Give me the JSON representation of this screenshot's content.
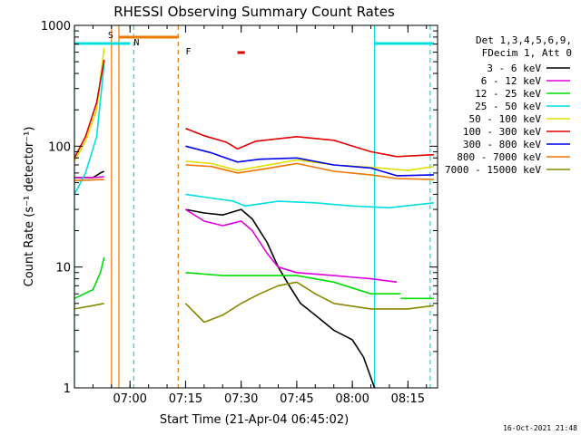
{
  "chart_data": {
    "type": "line",
    "title": "RHESSI Observing Summary Count Rates",
    "xlabel": "Start Time (21-Apr-04 06:45:02)",
    "ylabel": "Count Rate (s⁻¹ detector⁻¹)",
    "yscale": "log",
    "ylim": [
      1,
      1000
    ],
    "xlim": [
      "06:45:02",
      "08:23:00"
    ],
    "x_ticks": [
      "07:00",
      "07:15",
      "07:30",
      "07:45",
      "08:00",
      "08:15"
    ],
    "y_ticks": [
      "1",
      "10",
      "100",
      "1000"
    ],
    "grid": false,
    "legend_position": "right",
    "legend_header": [
      "Det 1,3,4,5,6,9,",
      "FDecim 1, Att 0"
    ],
    "timestamp": "16-Oct-2021 21:48",
    "series": [
      {
        "name": "3 - 6 keV",
        "color": "#000000",
        "segments": [
          [
            [
              "06:45",
              55
            ],
            [
              "06:50",
              55
            ],
            [
              "06:52",
              60
            ],
            [
              "06:53",
              62
            ]
          ],
          [
            [
              "07:15",
              30
            ],
            [
              "07:20",
              28
            ],
            [
              "07:25",
              27
            ],
            [
              "07:30",
              30
            ],
            [
              "07:33",
              25
            ],
            [
              "07:37",
              16
            ],
            [
              "07:40",
              10
            ],
            [
              "07:43",
              7
            ],
            [
              "07:46",
              5
            ],
            [
              "07:50",
              4
            ],
            [
              "07:55",
              3
            ],
            [
              "08:00",
              2.5
            ],
            [
              "08:03",
              1.8
            ],
            [
              "08:06",
              1
            ]
          ]
        ]
      },
      {
        "name": "6 - 12 keV",
        "color": "#e000e0",
        "segments": [
          [
            [
              "06:45",
              55
            ],
            [
              "06:50",
              55
            ],
            [
              "06:53",
              56
            ]
          ],
          [
            [
              "07:15",
              30
            ],
            [
              "07:20",
              24
            ],
            [
              "07:25",
              22
            ],
            [
              "07:30",
              24
            ],
            [
              "07:33",
              20
            ],
            [
              "07:37",
              13
            ],
            [
              "07:40",
              10
            ],
            [
              "07:45",
              9
            ],
            [
              "07:55",
              8.5
            ],
            [
              "08:05",
              8
            ],
            [
              "08:12",
              7.5
            ]
          ]
        ]
      },
      {
        "name": "12 - 25 keV",
        "color": "#00dd00",
        "segments": [
          [
            [
              "06:45",
              5.5
            ],
            [
              "06:50",
              6.5
            ],
            [
              "06:52",
              9
            ],
            [
              "06:53",
              12
            ]
          ],
          [
            [
              "07:15",
              9
            ],
            [
              "07:25",
              8.5
            ],
            [
              "07:35",
              8.5
            ],
            [
              "07:45",
              8.5
            ],
            [
              "07:55",
              7.5
            ],
            [
              "08:05",
              6
            ],
            [
              "08:13",
              6
            ]
          ],
          [
            [
              "08:13",
              5.5
            ],
            [
              "08:22",
              5.5
            ]
          ]
        ]
      },
      {
        "name": "25 - 50 keV",
        "color": "#00e0e0",
        "segments": [
          [
            [
              "06:45",
              40
            ],
            [
              "06:48",
              60
            ],
            [
              "06:51",
              120
            ],
            [
              "06:53",
              480
            ]
          ],
          [
            [
              "07:15",
              40
            ],
            [
              "07:20",
              38
            ],
            [
              "07:28",
              35
            ],
            [
              "07:31",
              32
            ],
            [
              "07:40",
              35
            ],
            [
              "07:50",
              34
            ],
            [
              "08:00",
              32
            ],
            [
              "08:10",
              31
            ],
            [
              "08:22",
              34
            ]
          ]
        ]
      },
      {
        "name": "50 - 100 keV",
        "color": "#e0e000",
        "segments": [
          [
            [
              "06:45",
              75
            ],
            [
              "06:48",
              110
            ],
            [
              "06:51",
              200
            ],
            [
              "06:53",
              650
            ]
          ],
          [
            [
              "07:15",
              75
            ],
            [
              "07:22",
              72
            ],
            [
              "07:29",
              63
            ],
            [
              "07:35",
              68
            ],
            [
              "07:45",
              77
            ],
            [
              "07:55",
              70
            ],
            [
              "08:05",
              67
            ],
            [
              "08:15",
              63
            ],
            [
              "08:22",
              68
            ]
          ]
        ]
      },
      {
        "name": "100 - 300 keV",
        "color": "#e00000",
        "segments": [
          [
            [
              "06:45",
              80
            ],
            [
              "06:48",
              120
            ],
            [
              "06:51",
              230
            ],
            [
              "06:53",
              520
            ]
          ],
          [
            [
              "07:15",
              140
            ],
            [
              "07:20",
              122
            ],
            [
              "07:26",
              108
            ],
            [
              "07:29",
              95
            ],
            [
              "07:34",
              110
            ],
            [
              "07:45",
              120
            ],
            [
              "07:55",
              112
            ],
            [
              "08:05",
              90
            ],
            [
              "08:12",
              82
            ],
            [
              "08:22",
              85
            ]
          ]
        ]
      },
      {
        "name": "300 - 800 keV",
        "color": "#0000ee",
        "segments": [
          [
            [
              "07:15",
              100
            ],
            [
              "07:22",
              88
            ],
            [
              "07:29",
              74
            ],
            [
              "07:35",
              78
            ],
            [
              "07:45",
              80
            ],
            [
              "07:55",
              70
            ],
            [
              "08:05",
              66
            ],
            [
              "08:12",
              57
            ],
            [
              "08:22",
              58
            ]
          ]
        ]
      },
      {
        "name": "800 - 7000 keV",
        "color": "#ee7700",
        "segments": [
          [
            [
              "06:45",
              52
            ],
            [
              "06:53",
              53
            ]
          ],
          [
            [
              "07:15",
              70
            ],
            [
              "07:22",
              68
            ],
            [
              "07:29",
              60
            ],
            [
              "07:35",
              64
            ],
            [
              "07:45",
              72
            ],
            [
              "07:55",
              62
            ],
            [
              "08:05",
              58
            ],
            [
              "08:12",
              54
            ],
            [
              "08:22",
              53
            ]
          ]
        ]
      },
      {
        "name": "7000 - 15000 keV",
        "color": "#888800",
        "segments": [
          [
            [
              "06:45",
              4.5
            ],
            [
              "06:50",
              4.8
            ],
            [
              "06:53",
              5
            ]
          ],
          [
            [
              "07:15",
              5
            ],
            [
              "07:20",
              3.5
            ],
            [
              "07:25",
              4
            ],
            [
              "07:30",
              5
            ],
            [
              "07:35",
              6
            ],
            [
              "07:40",
              7
            ],
            [
              "07:45",
              7.5
            ],
            [
              "07:50",
              6
            ],
            [
              "07:55",
              5
            ],
            [
              "08:05",
              4.5
            ],
            [
              "08:15",
              4.5
            ],
            [
              "08:22",
              4.8
            ]
          ]
        ]
      }
    ],
    "flag_labels": [
      {
        "text": "S",
        "time": "06:55",
        "color": "#ee7700"
      },
      {
        "text": "N",
        "time": "07:02",
        "color": "#00e0e0"
      },
      {
        "text": "F",
        "time": "07:16",
        "color": "#e00000"
      }
    ],
    "flag_bars": [
      {
        "name": "SAA",
        "color": "#ee7700",
        "start": "06:57",
        "end": "07:13"
      },
      {
        "name": "Night",
        "color": "#00e0e0",
        "start": "06:45",
        "end": "07:00"
      },
      {
        "name": "Night",
        "color": "#00e0e0",
        "start": "08:06",
        "end": "08:22"
      },
      {
        "name": "Flare",
        "color": "#e00000",
        "start": "07:29",
        "end": "07:31"
      }
    ],
    "vertical_markers": [
      {
        "time": "06:55",
        "color": "#ee7700",
        "style": "solid"
      },
      {
        "time": "06:57",
        "color": "#ee7700",
        "style": "solid"
      },
      {
        "time": "07:13",
        "color": "#ee7700",
        "style": "dashed"
      },
      {
        "time": "07:01",
        "color": "#00e0e0",
        "style": "dashed"
      },
      {
        "time": "06:45",
        "color": "#00e0e0",
        "style": "solid"
      },
      {
        "time": "08:06",
        "color": "#00e0e0",
        "style": "solid"
      },
      {
        "time": "08:21",
        "color": "#00e0e0",
        "style": "dashed"
      }
    ]
  }
}
